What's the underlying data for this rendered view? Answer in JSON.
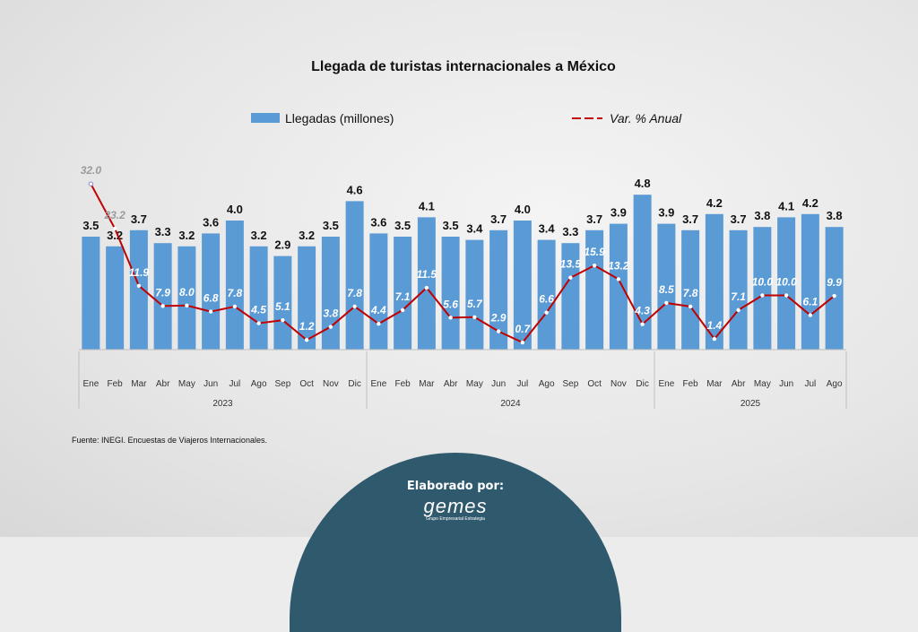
{
  "chart_data": {
    "type": "bar+line",
    "title": "Llegada de turistas internacionales a México",
    "categories": [
      "Ene",
      "Feb",
      "Mar",
      "Abr",
      "May",
      "Jun",
      "Jul",
      "Ago",
      "Sep",
      "Oct",
      "Nov",
      "Dic",
      "Ene",
      "Feb",
      "Mar",
      "Abr",
      "May",
      "Jun",
      "Jul",
      "Ago",
      "Sep",
      "Oct",
      "Nov",
      "Dic",
      "Ene",
      "Feb",
      "Mar",
      "Abr",
      "May",
      "Jun",
      "Jul",
      "Ago"
    ],
    "years": [
      {
        "label": "2023",
        "count": 12
      },
      {
        "label": "2024",
        "count": 12
      },
      {
        "label": "2025",
        "count": 8
      }
    ],
    "series": [
      {
        "name": "Llegadas (millones)",
        "type": "bar",
        "color": "#5b9bd5",
        "values": [
          3.5,
          3.2,
          3.7,
          3.3,
          3.2,
          3.6,
          4.0,
          3.2,
          2.9,
          3.2,
          3.5,
          4.6,
          3.6,
          3.5,
          4.1,
          3.5,
          3.4,
          3.7,
          4.0,
          3.4,
          3.3,
          3.7,
          3.9,
          4.8,
          3.9,
          3.7,
          4.2,
          3.7,
          3.8,
          4.1,
          4.2,
          3.8
        ]
      },
      {
        "name": "Var. % Anual",
        "type": "line",
        "color": "#c00000",
        "values": [
          32.0,
          23.2,
          11.9,
          7.9,
          8.0,
          6.8,
          7.8,
          4.5,
          5.1,
          1.2,
          3.8,
          7.8,
          4.4,
          7.1,
          11.5,
          5.6,
          5.7,
          2.9,
          0.7,
          6.6,
          13.5,
          15.9,
          13.2,
          4.3,
          8.5,
          7.8,
          1.4,
          7.1,
          10.0,
          10.0,
          6.1,
          9.9
        ]
      }
    ],
    "legend_position": "top",
    "grid": false
  },
  "source": "Fuente: INEGI. Encuestas de Viajeros Internacionales.",
  "footer": {
    "label": "Elaborado por:",
    "logo": "gemes",
    "logo_sub": "Grupo Empresarial Estrategia"
  }
}
